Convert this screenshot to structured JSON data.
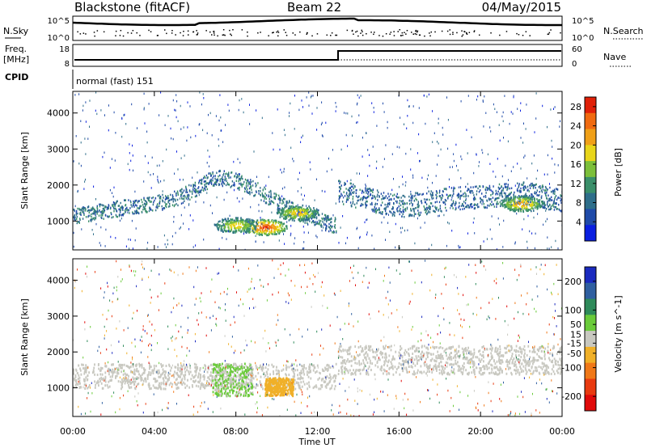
{
  "header": {
    "station": "Blackstone (fitACF)",
    "beam": "Beam 22",
    "date": "04/May/2015"
  },
  "top_panels": {
    "nsky_label": "N.Sky",
    "nsearch_label": "N.Search",
    "nsky_ticks": [
      "10^5",
      "10^0"
    ],
    "nsearch_ticks": [
      "10^5",
      "10^0"
    ],
    "freq_label_1": "Freq.",
    "freq_label_2": "[MHz]",
    "freq_ticks": [
      "18",
      "8"
    ],
    "nave_label": "Nave",
    "nave_ticks": [
      "60",
      "0"
    ],
    "cpid_label": "CPID",
    "cpid_value": "normal (fast) 151"
  },
  "colors": {
    "power_scale": [
      "#0a1fe0",
      "#1f4aa8",
      "#2e6e8a",
      "#3a8f6a",
      "#7cbf3a",
      "#e8d51a",
      "#f0a018",
      "#f06a10",
      "#e02008"
    ],
    "velocity_scale": [
      "#1a2abf",
      "#2f5fa0",
      "#2e8a5a",
      "#6acb3a",
      "#c8c8c0",
      "#f0b028",
      "#f07818",
      "#e83a10",
      "#e00a0a"
    ],
    "ground_scatter": "#c8c8c0"
  },
  "chart_data": [
    {
      "type": "heatmap",
      "name": "power",
      "ylabel": "Slant Range [km]",
      "xlabel": "Time UT",
      "x_ticks": [
        "00:00",
        "04:00",
        "08:00",
        "12:00",
        "16:00",
        "20:00",
        "00:00"
      ],
      "x_range_hours": [
        0,
        24
      ],
      "y_ticks": [
        1000,
        2000,
        3000,
        4000
      ],
      "ylim": [
        200,
        4600
      ],
      "colorbar_label": "Power [dB]",
      "colorbar_ticks": [
        4,
        8,
        12,
        16,
        20,
        24,
        28
      ],
      "colorbar_range": [
        0,
        30
      ],
      "echo_bands": [
        {
          "t": [
            0,
            1,
            2,
            3,
            4,
            5,
            6,
            7,
            8,
            9,
            10,
            11,
            12,
            12.9
          ],
          "range": [
            1150,
            1250,
            1350,
            1420,
            1500,
            1650,
            1900,
            2250,
            2150,
            1900,
            1550,
            1250,
            1050,
            900
          ],
          "width": 220,
          "level": 10
        },
        {
          "t": [
            13,
            14,
            15,
            16,
            17,
            18,
            19,
            20,
            21,
            22,
            23,
            24
          ],
          "range": [
            1850,
            1700,
            1550,
            1450,
            1500,
            1600,
            1650,
            1700,
            1750,
            1800,
            1700,
            1600
          ],
          "width": 320,
          "level": 9
        }
      ],
      "hot_spots": [
        {
          "t": 9.4,
          "range": 850,
          "level": 29
        },
        {
          "t": 8.0,
          "range": 900,
          "level": 21
        },
        {
          "t": 11.0,
          "range": 1250,
          "level": 22
        },
        {
          "t": 22.0,
          "range": 1500,
          "level": 24
        }
      ]
    },
    {
      "type": "heatmap",
      "name": "velocity",
      "ylabel": "Slant Range [km]",
      "xlabel": "Time UT",
      "x_ticks": [
        "00:00",
        "04:00",
        "08:00",
        "12:00",
        "16:00",
        "20:00",
        "00:00"
      ],
      "x_range_hours": [
        0,
        24
      ],
      "y_ticks": [
        1000,
        2000,
        3000,
        4000
      ],
      "ylim": [
        200,
        4600
      ],
      "colorbar_label": "Velocity [m s^-1]",
      "colorbar_ticks": [
        200,
        100,
        50,
        15,
        -15,
        -50,
        -100,
        -200
      ],
      "colorbar_range": [
        -250,
        250
      ],
      "regions": [
        {
          "t0": 0,
          "t1": 12.9,
          "r0": 1000,
          "r1": 1700,
          "value": 0,
          "kind": "ground"
        },
        {
          "t0": 13,
          "t1": 24,
          "r0": 1400,
          "r1": 2200,
          "value": 0,
          "kind": "ground"
        },
        {
          "t0": 6.8,
          "t1": 8.8,
          "r0": 800,
          "r1": 1700,
          "value": 30
        },
        {
          "t0": 9.4,
          "t1": 10.8,
          "r0": 800,
          "r1": 1300,
          "value": -60
        }
      ]
    }
  ],
  "xlabel": "Time UT"
}
